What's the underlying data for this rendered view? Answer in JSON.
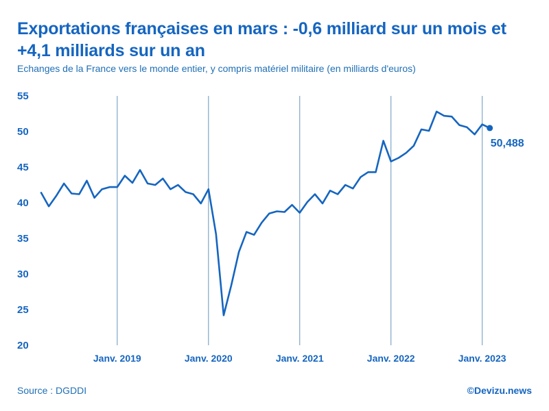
{
  "header": {
    "title_line1": "Exportations françaises en mars : -0,6 milliard sur un mois et",
    "title_line2": "+4,1 milliards sur un an",
    "subtitle": "Echanges de la France vers le monde entier, y compris matériel militaire (en milliards d'euros)"
  },
  "footer": {
    "source": "Source : DGDDI",
    "credit": "©Devizu.news"
  },
  "colors": {
    "line": "#1565c0",
    "gridline": "#7fa6c9",
    "text": "#1565c0"
  },
  "chart_data": {
    "type": "line",
    "title": "Exportations françaises en mars : -0,6 milliard sur un mois et +4,1 milliards sur un an",
    "ylabel": "",
    "xlabel": "",
    "ylim": [
      20,
      55
    ],
    "yticks": [
      55,
      50,
      45,
      40,
      35,
      30,
      25,
      20
    ],
    "xtick_labels": [
      "Janv. 2019",
      "Janv. 2020",
      "Janv. 2021",
      "Janv. 2022",
      "Janv. 2023"
    ],
    "xtick_index": [
      10,
      22,
      34,
      46,
      58
    ],
    "end_label": "50,488",
    "series": [
      {
        "name": "Exportations",
        "values": [
          41.4,
          39.5,
          41.0,
          42.7,
          41.3,
          41.2,
          43.1,
          40.7,
          41.9,
          42.2,
          42.2,
          43.8,
          42.8,
          44.6,
          42.7,
          42.5,
          43.4,
          41.9,
          42.5,
          41.5,
          41.2,
          39.9,
          41.9,
          35.6,
          24.2,
          28.4,
          33.1,
          35.9,
          35.5,
          37.2,
          38.5,
          38.8,
          38.7,
          39.7,
          38.6,
          40.1,
          41.2,
          39.9,
          41.7,
          41.2,
          42.5,
          42.0,
          43.6,
          44.3,
          44.3,
          48.7,
          45.8,
          46.3,
          47.0,
          48.0,
          50.3,
          50.1,
          52.8,
          52.2,
          52.1,
          50.9,
          50.6,
          49.6,
          51.0,
          50.488
        ]
      }
    ]
  }
}
